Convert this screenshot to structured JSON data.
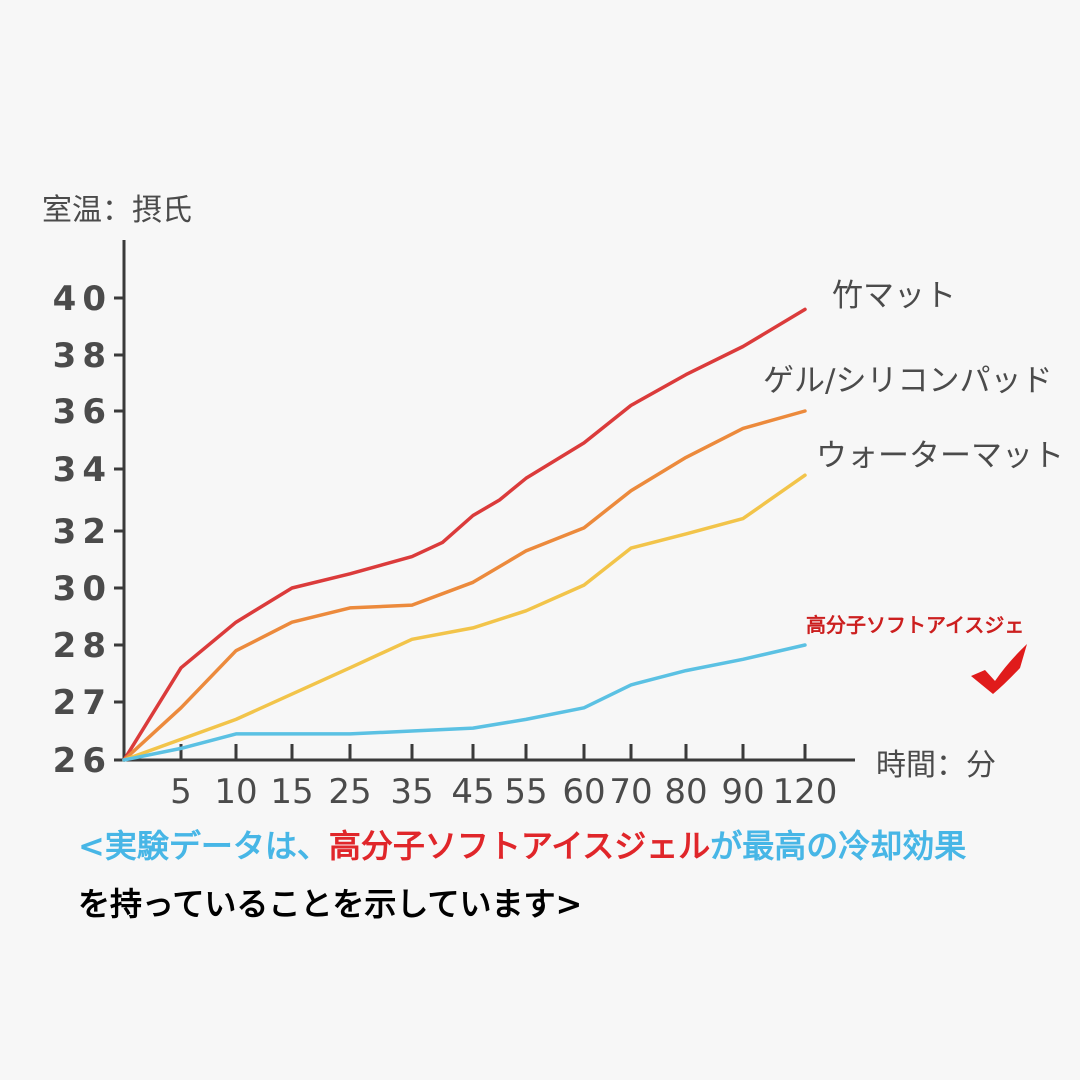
{
  "chart_data": {
    "type": "line",
    "ylabel": "室温：摂氏",
    "xlabel": "時間：分",
    "x_ticks": [
      "5",
      "10",
      "15",
      "25",
      "35",
      "45",
      "55",
      "60",
      "70",
      "80",
      "90",
      "120"
    ],
    "y_ticks": [
      "26",
      "27",
      "28",
      "30",
      "32",
      "34",
      "36",
      "38",
      "40"
    ],
    "series": [
      {
        "name": "竹マット",
        "color": "#db3b3b",
        "points": [
          [
            0,
            26
          ],
          [
            5,
            27.6
          ],
          [
            10,
            28.8
          ],
          [
            15,
            30.0
          ],
          [
            25,
            30.5
          ],
          [
            35,
            31.1
          ],
          [
            40,
            31.6
          ],
          [
            45,
            32.5
          ],
          [
            50,
            33.0
          ],
          [
            55,
            33.7
          ],
          [
            60,
            34.9
          ],
          [
            70,
            36.2
          ],
          [
            80,
            37.3
          ],
          [
            90,
            38.3
          ],
          [
            120,
            39.6
          ]
        ]
      },
      {
        "name": "ゲル/シリコンパッド",
        "color": "#ec8a3c",
        "points": [
          [
            0,
            26
          ],
          [
            5,
            26.9
          ],
          [
            10,
            27.9
          ],
          [
            15,
            28.8
          ],
          [
            25,
            29.3
          ],
          [
            35,
            29.4
          ],
          [
            45,
            30.2
          ],
          [
            55,
            31.3
          ],
          [
            60,
            32.1
          ],
          [
            70,
            33.3
          ],
          [
            80,
            34.4
          ],
          [
            90,
            35.4
          ],
          [
            120,
            36.0
          ]
        ]
      },
      {
        "name": "ウォーターマット",
        "color": "#f2c44a",
        "points": [
          [
            0,
            26
          ],
          [
            10,
            26.7
          ],
          [
            25,
            27.6
          ],
          [
            35,
            28.2
          ],
          [
            45,
            28.6
          ],
          [
            55,
            29.2
          ],
          [
            60,
            30.1
          ],
          [
            70,
            31.4
          ],
          [
            80,
            31.9
          ],
          [
            90,
            32.4
          ],
          [
            120,
            33.8
          ]
        ]
      },
      {
        "name": "高分子ソフトアイスジェ",
        "color": "#5bc1e3",
        "points": [
          [
            0,
            26
          ],
          [
            5,
            26.2
          ],
          [
            10,
            26.45
          ],
          [
            15,
            26.45
          ],
          [
            25,
            26.45
          ],
          [
            35,
            26.5
          ],
          [
            45,
            26.55
          ],
          [
            55,
            26.7
          ],
          [
            60,
            26.9
          ],
          [
            70,
            27.3
          ],
          [
            80,
            27.55
          ],
          [
            90,
            27.75
          ],
          [
            120,
            28.0
          ]
        ]
      }
    ],
    "highlight_mark": "checkmark-icon",
    "highlight_color": "#e01b1b"
  },
  "caption": {
    "line1_part1": "<実験データは、",
    "line1_highlight": "高分子ソフトアイスジェル",
    "line1_part2": "が最高の冷却効果",
    "line2": "を持っていることを示しています>"
  }
}
